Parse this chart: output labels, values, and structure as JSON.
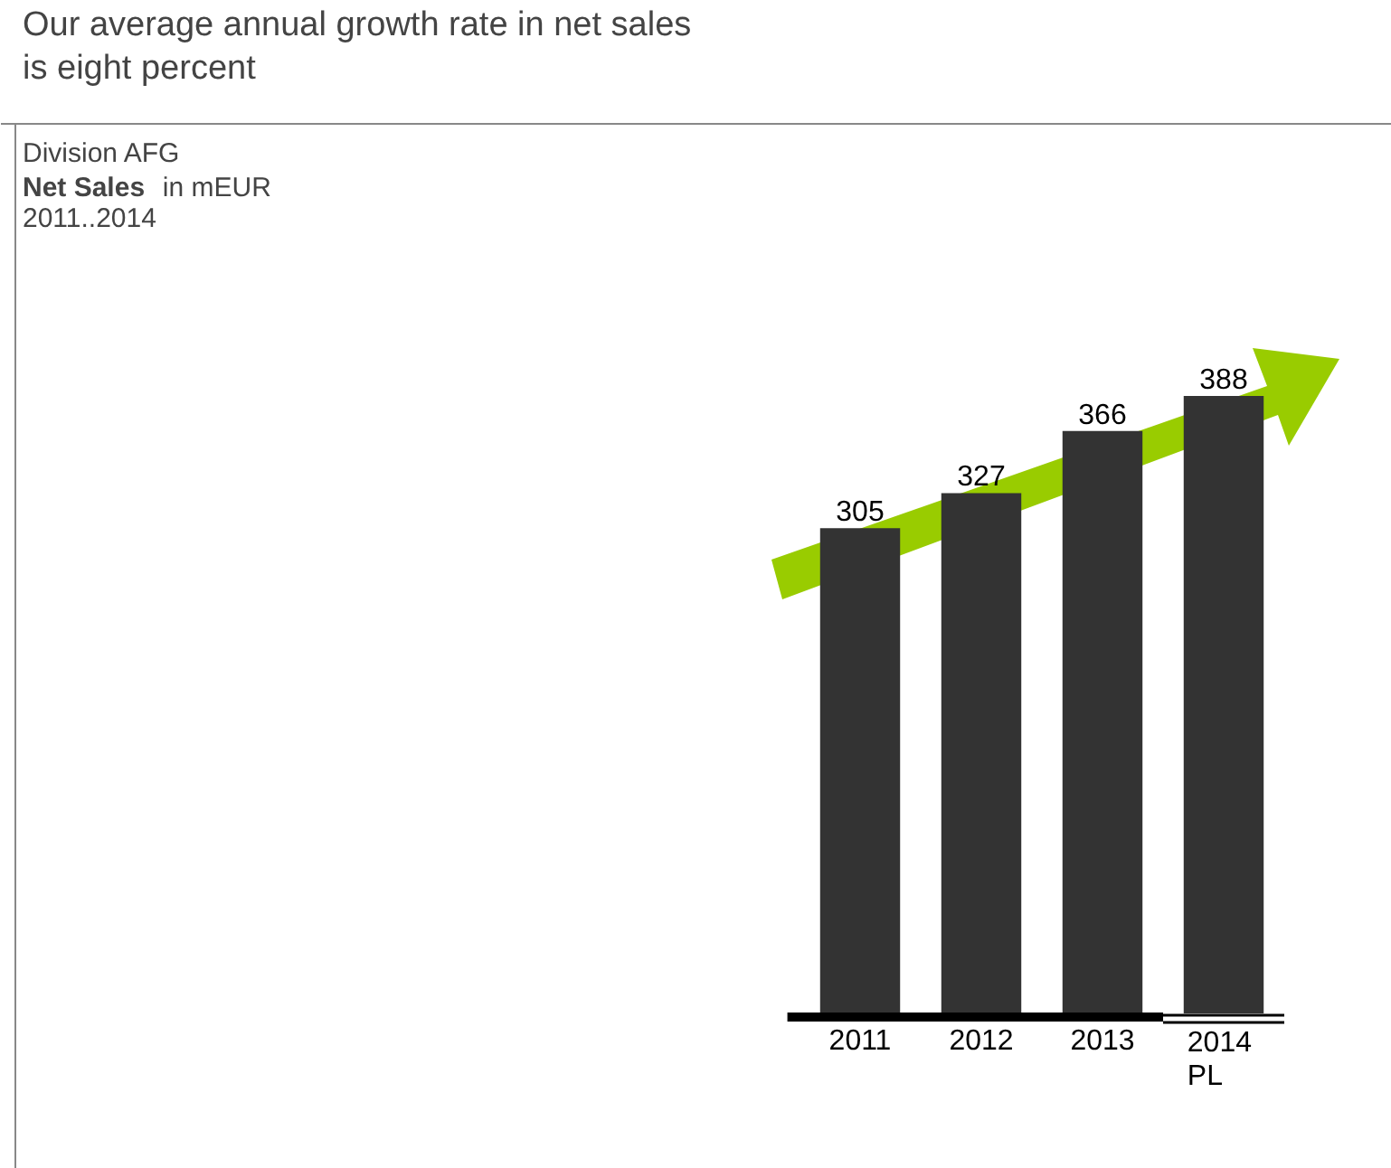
{
  "chart_data": {
    "type": "bar",
    "title": "Our average annual growth rate in net sales\nis eight percent",
    "subtitle": "Division AFG\nNet Sales in mEUR\n2011..2014",
    "categories": [
      "2011",
      "2012",
      "2013",
      "2014\nPL"
    ],
    "values": [
      305,
      327,
      366,
      388
    ],
    "color": "#333333",
    "data_labels": true,
    "grid": false
  }
}
